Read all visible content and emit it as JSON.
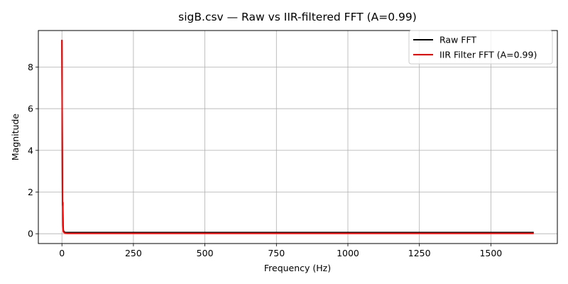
{
  "chart_data": {
    "type": "line",
    "title": "sigB.csv — Raw vs IIR-filtered FFT (A=0.99)",
    "xlabel": "Frequency (Hz)",
    "ylabel": "Magnitude",
    "xlim": [
      -82.5,
      1732.5
    ],
    "ylim": [
      -0.47,
      9.75
    ],
    "xticks": [
      0,
      250,
      500,
      750,
      1000,
      1250,
      1500
    ],
    "xtick_labels": [
      "0",
      "250",
      "500",
      "750",
      "1000",
      "1250",
      "1500"
    ],
    "yticks": [
      0,
      2,
      4,
      6,
      8
    ],
    "ytick_labels": [
      "0",
      "2",
      "4",
      "6",
      "8"
    ],
    "grid": true,
    "legend": "top-right",
    "series": [
      {
        "name": "Raw FFT",
        "color": "#000000",
        "x": [
          0,
          1,
          2,
          3,
          4,
          5,
          8,
          12,
          20,
          50,
          100,
          200,
          400,
          600,
          800,
          1000,
          1200,
          1400,
          1600,
          1650
        ],
        "y": [
          9.3,
          5.0,
          1.5,
          1.5,
          0.4,
          0.15,
          0.08,
          0.06,
          0.06,
          0.06,
          0.06,
          0.06,
          0.06,
          0.06,
          0.06,
          0.06,
          0.06,
          0.06,
          0.06,
          0.06
        ]
      },
      {
        "name": "IIR Filter FFT (A=0.99)",
        "color": "#ff0000",
        "x": [
          0,
          1,
          2,
          3,
          4,
          5,
          8,
          12,
          20,
          50,
          100,
          200,
          400,
          600,
          800,
          1000,
          1200,
          1400,
          1600,
          1650
        ],
        "y": [
          9.3,
          4.5,
          1.4,
          1.3,
          0.3,
          0.1,
          0.05,
          0.03,
          0.02,
          0.02,
          0.02,
          0.02,
          0.02,
          0.02,
          0.02,
          0.02,
          0.02,
          0.02,
          0.02,
          0.02
        ]
      }
    ]
  }
}
